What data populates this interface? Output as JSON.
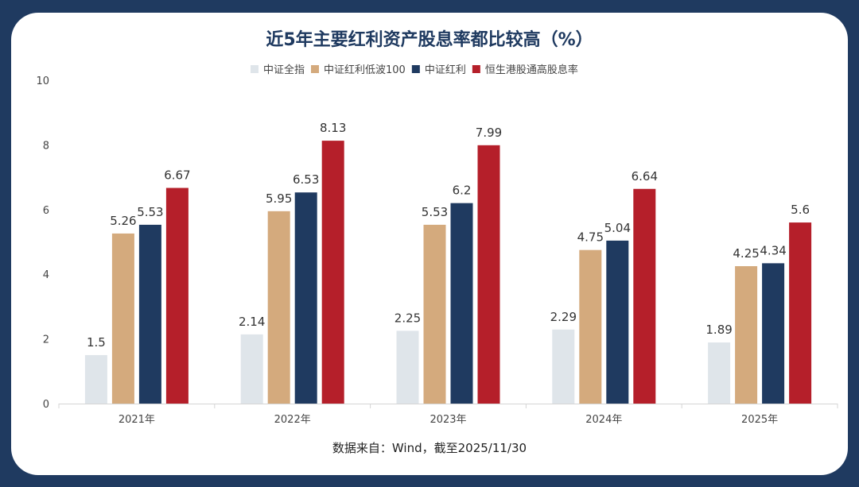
{
  "chart_data": {
    "type": "bar",
    "title": "近5年主要红利资产股息率都比较高（%）",
    "categories": [
      "2021年",
      "2022年",
      "2023年",
      "2024年",
      "2025年"
    ],
    "series": [
      {
        "name": "中证全指",
        "color": "#dfe5ea",
        "values": [
          1.5,
          2.14,
          2.25,
          2.29,
          1.89
        ]
      },
      {
        "name": "中证红利低波100",
        "color": "#d4aa7d",
        "values": [
          5.26,
          5.95,
          5.53,
          4.75,
          4.25
        ]
      },
      {
        "name": "中证红利",
        "color": "#1f3a60",
        "values": [
          5.53,
          6.53,
          6.2,
          5.04,
          4.34
        ]
      },
      {
        "name": "恒生港股通高股息率",
        "color": "#b51f2a",
        "values": [
          6.67,
          8.13,
          7.99,
          6.64,
          5.6
        ]
      }
    ],
    "ylim": [
      0,
      10
    ],
    "yticks": [
      0,
      2,
      4,
      6,
      8,
      10
    ],
    "grid": false,
    "legend": "top-center",
    "source": "数据来自：Wind，截至2025/11/30"
  },
  "colors": {
    "background": "#1f3a60",
    "card": "#ffffff"
  }
}
